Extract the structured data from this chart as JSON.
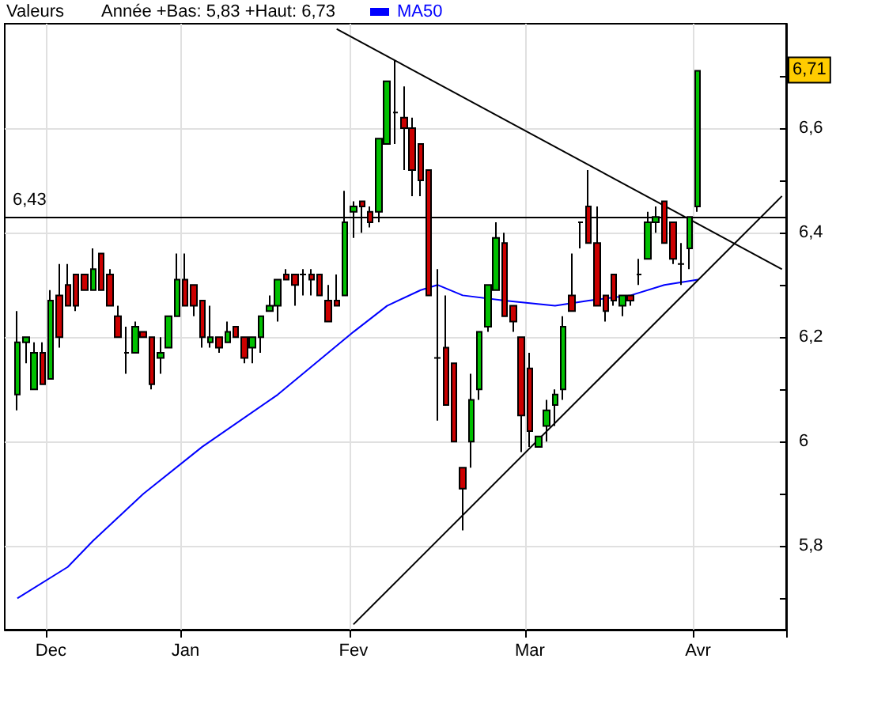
{
  "chart_data": {
    "type": "candlestick",
    "legend_title": "Valeurs",
    "annotations": [
      "Année +Bas: 5,83 +Haut: 6,73",
      {
        "text": "6,71",
        "y": 6.71
      }
    ],
    "categories": [
      null,
      null,
      null,
      null,
      null,
      "Dec",
      null,
      null,
      null,
      null,
      null,
      null,
      null,
      null,
      null,
      null,
      null,
      null,
      null,
      null,
      null,
      "Jan",
      null,
      null,
      null,
      null,
      null,
      null,
      null,
      null,
      null,
      null,
      null,
      null,
      null,
      null,
      null,
      null,
      null,
      null,
      null,
      "Fev",
      null,
      null,
      null,
      null,
      null,
      null,
      null,
      null,
      null,
      null,
      null,
      null,
      null,
      null,
      null,
      null,
      null,
      null,
      null,
      null,
      "Mar",
      null,
      null,
      null,
      null,
      null,
      null,
      null,
      null,
      null,
      null,
      null,
      null,
      null,
      null,
      null,
      null,
      null,
      null,
      null,
      "Avr",
      null,
      null,
      null,
      null,
      null,
      null,
      null,
      null,
      null,
      null
    ],
    "ohlc": [
      null,
      [
        6.09,
        6.25,
        6.06,
        6.19
      ],
      [
        6.19,
        6.2,
        6.15,
        6.2
      ],
      [
        6.1,
        6.19,
        6.1,
        6.17
      ],
      [
        6.17,
        6.19,
        6.11,
        6.11
      ],
      [
        6.12,
        6.29,
        6.12,
        6.27
      ],
      [
        6.28,
        6.34,
        6.18,
        6.2
      ],
      [
        6.3,
        6.34,
        6.26,
        6.26
      ],
      [
        6.32,
        6.32,
        6.25,
        6.26
      ],
      [
        6.32,
        6.32,
        6.29,
        6.29
      ],
      [
        6.29,
        6.37,
        6.29,
        6.33
      ],
      [
        6.36,
        6.36,
        6.29,
        6.29
      ],
      [
        6.32,
        6.33,
        6.26,
        6.26
      ],
      [
        6.24,
        6.26,
        6.2,
        6.2
      ],
      [
        6.17,
        6.22,
        6.13,
        6.17
      ],
      [
        6.17,
        6.23,
        6.17,
        6.22
      ],
      [
        6.21,
        6.21,
        6.2,
        6.2
      ],
      [
        6.2,
        6.2,
        6.1,
        6.11
      ],
      [
        6.16,
        6.2,
        6.13,
        6.17
      ],
      [
        6.18,
        6.24,
        6.18,
        6.24
      ],
      [
        6.24,
        6.36,
        6.24,
        6.31
      ],
      [
        6.31,
        6.36,
        6.26,
        6.26
      ],
      [
        6.3,
        6.3,
        6.24,
        6.26
      ],
      [
        6.27,
        6.27,
        6.18,
        6.2
      ],
      [
        6.19,
        6.26,
        6.18,
        6.2
      ],
      [
        6.2,
        6.2,
        6.17,
        6.18
      ],
      [
        6.19,
        6.23,
        6.19,
        6.21
      ],
      [
        6.22,
        6.22,
        6.2,
        6.2
      ],
      [
        6.2,
        6.2,
        6.15,
        6.16
      ],
      [
        6.18,
        6.2,
        6.15,
        6.2
      ],
      [
        6.2,
        6.24,
        6.17,
        6.24
      ],
      [
        6.25,
        6.28,
        6.25,
        6.26
      ],
      [
        6.26,
        6.31,
        6.23,
        6.31
      ],
      [
        6.32,
        6.33,
        6.31,
        6.31
      ],
      [
        6.32,
        6.32,
        6.26,
        6.3
      ],
      [
        6.32,
        6.33,
        6.28,
        6.32
      ],
      [
        6.32,
        6.33,
        6.28,
        6.31
      ],
      [
        6.32,
        6.32,
        6.28,
        6.28
      ],
      [
        6.27,
        6.3,
        6.23,
        6.23
      ],
      [
        6.27,
        6.32,
        6.26,
        6.26
      ],
      [
        6.28,
        6.48,
        6.28,
        6.42
      ],
      [
        6.44,
        6.46,
        6.39,
        6.45
      ],
      [
        6.46,
        6.46,
        6.4,
        6.45
      ],
      [
        6.44,
        6.45,
        6.41,
        6.42
      ],
      [
        6.44,
        6.58,
        6.42,
        6.58
      ],
      [
        6.57,
        6.69,
        6.57,
        6.69
      ],
      [
        6.63,
        6.73,
        6.57,
        6.63
      ],
      [
        6.62,
        6.68,
        6.52,
        6.6
      ],
      [
        6.6,
        6.62,
        6.47,
        6.52
      ],
      [
        6.57,
        6.57,
        6.47,
        6.5
      ],
      [
        6.52,
        6.52,
        6.28,
        6.28
      ],
      [
        6.16,
        6.33,
        6.04,
        6.16
      ],
      [
        6.18,
        6.28,
        6.07,
        6.07
      ],
      [
        6.15,
        6.15,
        6.0,
        6.0
      ],
      [
        5.95,
        5.95,
        5.83,
        5.91
      ],
      [
        6.0,
        6.13,
        5.95,
        6.08
      ],
      [
        6.1,
        6.21,
        6.08,
        6.21
      ],
      [
        6.22,
        6.3,
        6.21,
        6.3
      ],
      [
        6.29,
        6.42,
        6.29,
        6.39
      ],
      [
        6.38,
        6.4,
        6.24,
        6.24
      ],
      [
        6.26,
        6.26,
        6.21,
        6.23
      ],
      [
        6.2,
        6.2,
        5.98,
        6.05
      ],
      [
        6.14,
        6.17,
        5.99,
        6.02
      ],
      [
        5.99,
        6.01,
        5.99,
        6.01
      ],
      [
        6.03,
        6.08,
        6.0,
        6.06
      ],
      [
        6.07,
        6.1,
        6.03,
        6.09
      ],
      [
        6.1,
        6.24,
        6.08,
        6.22
      ],
      [
        6.28,
        6.36,
        6.25,
        6.25
      ],
      [
        6.42,
        6.42,
        6.37,
        6.42
      ],
      [
        6.45,
        6.52,
        6.38,
        6.38
      ],
      [
        6.38,
        6.45,
        6.26,
        6.26
      ],
      [
        6.28,
        6.28,
        6.23,
        6.25
      ],
      [
        6.32,
        6.32,
        6.26,
        6.27
      ],
      [
        6.26,
        6.28,
        6.24,
        6.28
      ],
      [
        6.28,
        6.28,
        6.26,
        6.27
      ],
      [
        6.32,
        6.35,
        6.3,
        6.32
      ],
      [
        6.35,
        6.44,
        6.35,
        6.42
      ],
      [
        6.42,
        6.45,
        6.4,
        6.43
      ],
      [
        6.46,
        6.46,
        6.38,
        6.38
      ],
      [
        6.42,
        6.42,
        6.34,
        6.35
      ],
      [
        6.34,
        6.38,
        6.3,
        6.34
      ],
      [
        6.37,
        6.43,
        6.33,
        6.43
      ],
      [
        6.45,
        6.71,
        6.44,
        6.71
      ],
      null,
      null,
      null,
      null,
      null,
      null,
      null,
      null,
      null,
      null
    ],
    "series": [
      {
        "name": "MA50",
        "type": "line",
        "color": "#0000ff",
        "values": [
          null,
          5.7,
          null,
          null,
          null,
          null,
          null,
          5.76,
          null,
          null,
          5.81,
          null,
          null,
          null,
          null,
          null,
          5.9,
          null,
          null,
          null,
          null,
          null,
          null,
          5.99,
          null,
          null,
          null,
          null,
          null,
          null,
          null,
          null,
          6.09,
          null,
          null,
          null,
          null,
          null,
          null,
          null,
          null,
          6.21,
          null,
          null,
          null,
          6.26,
          null,
          null,
          null,
          6.29,
          null,
          6.3,
          null,
          null,
          6.28,
          null,
          null,
          null,
          null,
          6.27,
          null,
          null,
          null,
          null,
          null,
          6.26,
          null,
          null,
          null,
          6.27,
          null,
          null,
          null,
          null,
          6.28,
          null,
          null,
          null,
          6.3,
          null,
          null,
          null,
          6.31,
          null,
          null,
          null,
          null,
          null,
          null,
          null,
          null,
          null,
          null
        ]
      },
      {
        "type": "line",
        "color": "#000000",
        "values": [
          null,
          null,
          null,
          null,
          null,
          null,
          null,
          null,
          null,
          null,
          null,
          null,
          null,
          null,
          null,
          null,
          null,
          null,
          null,
          null,
          null,
          null,
          null,
          null,
          null,
          null,
          null,
          null,
          null,
          null,
          null,
          null,
          null,
          null,
          null,
          null,
          null,
          null,
          null,
          6.79,
          null,
          null,
          null,
          null,
          null,
          null,
          null,
          null,
          null,
          null,
          null,
          null,
          null,
          null,
          null,
          null,
          null,
          null,
          null,
          null,
          null,
          null,
          null,
          null,
          null,
          null,
          null,
          null,
          null,
          null,
          null,
          null,
          null,
          null,
          null,
          null,
          null,
          null,
          null,
          null,
          null,
          null,
          null,
          null,
          null,
          null,
          null,
          null,
          null,
          null,
          null,
          null,
          6.33
        ]
      },
      {
        "type": "line",
        "color": "#000000",
        "values": [
          null,
          null,
          null,
          null,
          null,
          null,
          null,
          null,
          null,
          null,
          null,
          null,
          null,
          null,
          null,
          null,
          null,
          null,
          null,
          null,
          null,
          null,
          null,
          null,
          null,
          null,
          null,
          null,
          null,
          null,
          null,
          null,
          null,
          null,
          null,
          null,
          null,
          null,
          null,
          null,
          null,
          5.65,
          null,
          null,
          null,
          null,
          null,
          null,
          null,
          null,
          null,
          null,
          null,
          null,
          null,
          null,
          null,
          null,
          null,
          null,
          null,
          null,
          null,
          null,
          null,
          null,
          null,
          null,
          null,
          null,
          null,
          null,
          null,
          null,
          null,
          null,
          null,
          null,
          null,
          null,
          null,
          null,
          null,
          null,
          null,
          null,
          null,
          null,
          null,
          null,
          null,
          null,
          6.47
        ]
      }
    ],
    "ylim": [
      5.64,
      6.8
    ],
    "yticks": [
      {
        "value": 5.7,
        "label": null
      },
      {
        "value": 5.8,
        "label": "5,8"
      },
      {
        "value": 5.9,
        "label": null
      },
      {
        "value": 6.0,
        "label": "6"
      },
      {
        "value": 6.1,
        "label": null
      },
      {
        "value": 6.2,
        "label": "6,2"
      },
      {
        "value": 6.3,
        "label": null
      },
      {
        "value": 6.4,
        "label": "6,4"
      },
      {
        "value": 6.5,
        "label": null
      },
      {
        "value": 6.6,
        "label": "6,6"
      },
      {
        "value": 6.7,
        "label": null
      }
    ],
    "ref_lines": [
      {
        "axis": "y",
        "value": 6.43,
        "label": "6,43",
        "color": "#000000"
      }
    ],
    "grid": true,
    "legend": "top left",
    "marker": "none"
  }
}
